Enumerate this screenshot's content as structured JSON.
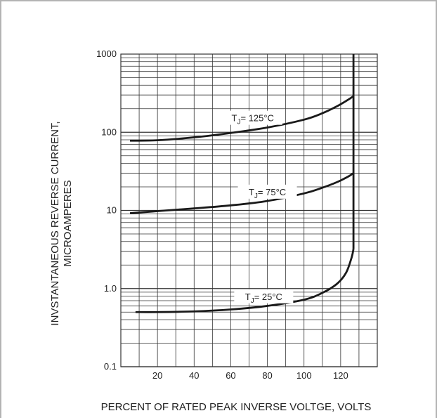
{
  "chart_data": {
    "type": "line",
    "title": "",
    "xlabel": "PERCENT OF RATED PEAK INVERSE VOLTGE, VOLTS",
    "ylabel_lines": [
      "INVSTANTANEOUS REVERSE CURRENT,",
      "MICROAMPERES"
    ],
    "y_scale": "log",
    "ylim": [
      0.1,
      1000
    ],
    "xlim": [
      0,
      140
    ],
    "x_ticks": [
      "20",
      "40",
      "60",
      "80",
      "100",
      "120"
    ],
    "x_tick_values": [
      20,
      40,
      60,
      80,
      100,
      120
    ],
    "y_ticks": [
      "1000",
      "100",
      "10",
      "1.0",
      "0.1"
    ],
    "y_tick_values": [
      1000,
      100,
      10,
      1,
      0.1
    ],
    "grid": true,
    "colors": {
      "curve": "#1a1a1a",
      "grid": "#333333",
      "border": "#b3b3b3"
    },
    "series": [
      {
        "label_prefix": "T",
        "label_sub": "J",
        "label_suffix": "= 125°C",
        "label_at": [
          72,
          150
        ],
        "x": [
          5,
          20,
          40,
          60,
          80,
          100,
          110,
          118,
          124,
          127
        ],
        "y": [
          78,
          79,
          86,
          98,
          115,
          145,
          175,
          215,
          260,
          290
        ]
      },
      {
        "label_prefix": "T",
        "label_sub": "J",
        "label_suffix": "= 75°C",
        "label_at": [
          80,
          17
        ],
        "x": [
          5,
          20,
          40,
          60,
          80,
          100,
          110,
          118,
          124,
          127
        ],
        "y": [
          9.2,
          9.8,
          10.6,
          11.6,
          13.2,
          16.5,
          19.5,
          23,
          27,
          30
        ]
      },
      {
        "label_prefix": "T",
        "label_sub": "J",
        "label_suffix": "= 25°C",
        "label_at": [
          78,
          0.78
        ],
        "x": [
          8,
          20,
          40,
          60,
          80,
          100,
          110,
          118,
          123,
          126,
          127
        ],
        "y": [
          0.5,
          0.5,
          0.51,
          0.54,
          0.6,
          0.72,
          0.88,
          1.15,
          1.6,
          2.5,
          3.2
        ]
      },
      {
        "label_prefix": "",
        "label_sub": "",
        "label_suffix": "",
        "x": [
          127,
          127
        ],
        "y": [
          3.2,
          1000
        ]
      }
    ]
  }
}
